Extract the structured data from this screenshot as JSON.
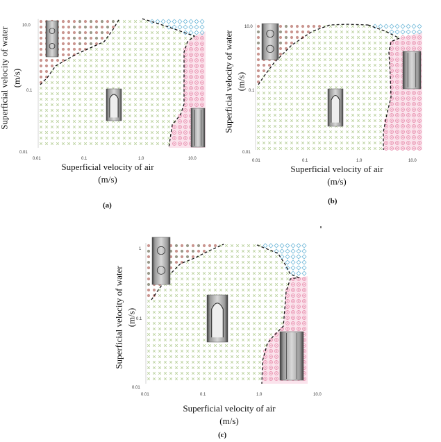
{
  "panels": [
    {
      "id": "a",
      "caption": "(a)",
      "xlabel_line1": "Superficial velocity of air",
      "xlabel_line2": "(m/s)",
      "ylabel_line1": "Superficial velocity of water",
      "ylabel_line2": "(m/s)",
      "x_ticks": [
        "0.01",
        "0.1",
        "1.0",
        "10.0"
      ],
      "y_ticks": [
        "10.0",
        "0.1",
        "0.01"
      ]
    },
    {
      "id": "b",
      "caption": "(b)",
      "xlabel_line1": "Superficial velocity of air",
      "xlabel_line2": "(m/s)",
      "ylabel_line1": "Superficial velocity of water",
      "ylabel_line2": "(m/s)",
      "x_ticks": [
        "0.01",
        "0.1",
        "1.0",
        "10.0"
      ],
      "y_ticks": [
        "10.0",
        "0.1",
        "0.01"
      ]
    },
    {
      "id": "c",
      "caption": "(c)",
      "xlabel_line1": "Superficial velocity of air",
      "xlabel_line2": "(m/s)",
      "ylabel_line1": "Superficial velocity of water",
      "ylabel_line2": "(m/s)",
      "x_ticks": [
        "0.01",
        "0.1",
        "1.0",
        "10.0"
      ],
      "y_ticks": [
        "1",
        "0.1",
        "0.01"
      ]
    }
  ],
  "colors": {
    "bubbly_marker": "#c9958f",
    "bubbly_dark_marker": "#9a9a8a",
    "slug_marker": "#b8cf9a",
    "annular_marker": "#e68aaa",
    "annular_bg": "#fbe3ec",
    "churn_marker": "#6fb8d8",
    "boundary": "#111111"
  },
  "icons": [
    "bubble-flow-inset",
    "slug-flow-inset",
    "annular-flow-inset"
  ]
}
